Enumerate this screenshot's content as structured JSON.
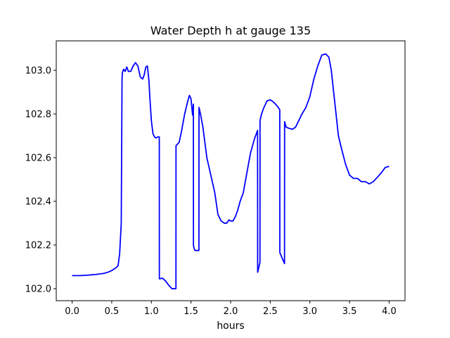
{
  "chart_data": {
    "type": "line",
    "title": "Water Depth h at gauge 135",
    "xlabel": "hours",
    "ylabel": "",
    "xlim": [
      -0.2,
      4.2
    ],
    "ylim": [
      101.945,
      103.135
    ],
    "xticks": [
      0.0,
      0.5,
      1.0,
      1.5,
      2.0,
      2.5,
      3.0,
      3.5,
      4.0
    ],
    "xtick_labels": [
      "0.0",
      "0.5",
      "1.0",
      "1.5",
      "2.0",
      "2.5",
      "3.0",
      "3.5",
      "4.0"
    ],
    "yticks": [
      102.0,
      102.2,
      102.4,
      102.6,
      102.8,
      103.0
    ],
    "ytick_labels": [
      "102.0",
      "102.2",
      "102.4",
      "102.6",
      "102.8",
      "103.0"
    ],
    "grid": false,
    "series": [
      {
        "color": "#0000ff",
        "x": [
          0.0,
          0.1,
          0.2,
          0.3,
          0.4,
          0.45,
          0.5,
          0.55,
          0.58,
          0.6,
          0.62,
          0.63,
          0.635,
          0.65,
          0.67,
          0.69,
          0.71,
          0.74,
          0.77,
          0.8,
          0.83,
          0.86,
          0.89,
          0.91,
          0.93,
          0.95,
          0.97,
          0.98,
          1.0,
          1.02,
          1.04,
          1.06,
          1.08,
          1.1,
          1.101,
          1.14,
          1.18,
          1.22,
          1.26,
          1.29,
          1.31,
          1.311,
          1.35,
          1.38,
          1.42,
          1.46,
          1.48,
          1.5,
          1.52,
          1.53,
          1.531,
          1.535,
          1.55,
          1.57,
          1.6,
          1.601,
          1.62,
          1.65,
          1.7,
          1.75,
          1.8,
          1.84,
          1.88,
          1.92,
          1.95,
          1.98,
          2.0,
          2.03,
          2.06,
          2.09,
          2.12,
          2.16,
          2.2,
          2.25,
          2.3,
          2.34,
          2.341,
          2.37,
          2.371,
          2.39,
          2.42,
          2.46,
          2.5,
          2.54,
          2.58,
          2.62,
          2.621,
          2.65,
          2.68,
          2.681,
          2.7,
          2.73,
          2.78,
          2.82,
          2.86,
          2.9,
          2.95,
          3.0,
          3.05,
          3.1,
          3.15,
          3.2,
          3.24,
          3.27,
          3.3,
          3.33,
          3.36,
          3.4,
          3.45,
          3.5,
          3.55,
          3.6,
          3.65,
          3.7,
          3.75,
          3.8,
          3.85,
          3.9,
          3.95,
          4.0
        ],
        "y": [
          102.06,
          102.06,
          102.062,
          102.065,
          102.07,
          102.075,
          102.083,
          102.095,
          102.105,
          102.16,
          102.3,
          102.96,
          102.99,
          103.005,
          102.995,
          103.015,
          102.995,
          102.995,
          103.02,
          103.035,
          103.02,
          102.97,
          102.96,
          102.98,
          103.015,
          103.02,
          102.95,
          102.88,
          102.77,
          102.71,
          102.695,
          102.69,
          102.695,
          102.695,
          102.045,
          102.048,
          102.035,
          102.015,
          102.0,
          102.0,
          102.0,
          102.655,
          102.67,
          102.72,
          102.8,
          102.86,
          102.885,
          102.87,
          102.795,
          102.845,
          102.2,
          102.19,
          102.175,
          102.175,
          102.175,
          102.83,
          102.8,
          102.74,
          102.6,
          102.52,
          102.44,
          102.34,
          102.31,
          102.3,
          102.3,
          102.315,
          102.31,
          102.31,
          102.33,
          102.36,
          102.4,
          102.44,
          102.52,
          102.62,
          102.685,
          102.725,
          102.075,
          102.12,
          102.77,
          102.8,
          102.83,
          102.86,
          102.865,
          102.855,
          102.84,
          102.82,
          102.165,
          102.14,
          102.115,
          102.765,
          102.74,
          102.735,
          102.73,
          102.74,
          102.77,
          102.8,
          102.83,
          102.88,
          102.96,
          103.02,
          103.07,
          103.075,
          103.06,
          103.0,
          102.9,
          102.8,
          102.7,
          102.64,
          102.57,
          102.52,
          102.505,
          102.505,
          102.49,
          102.49,
          102.48,
          102.49,
          102.51,
          102.53,
          102.555,
          102.56
        ]
      }
    ]
  }
}
